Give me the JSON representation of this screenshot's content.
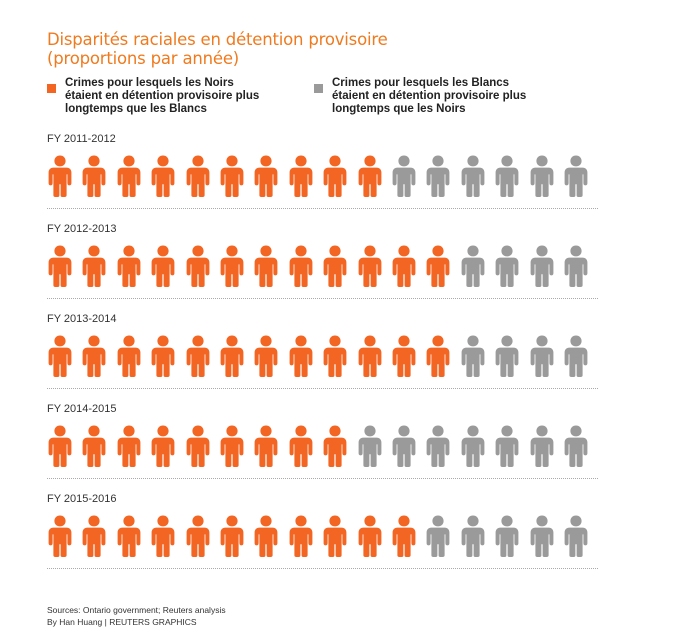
{
  "title": {
    "line1": "Disparités raciales en détention provisoire",
    "line2": "(proportions par année)"
  },
  "legend": [
    {
      "label": "Crimes pour lesquels les Noirs étaient en détention provisoire plus longtemps que les Blancs",
      "color": "#f26522"
    },
    {
      "label": "Crimes pour lesquels les Blancs étaient en détention provisoire plus longtemps que les Noirs",
      "color": "#9a9a9a"
    }
  ],
  "chart_data": {
    "type": "pictogram",
    "total_icons_per_row": 16,
    "colors": {
      "black_longer": "#f26522",
      "white_longer": "#9a9a9a"
    },
    "series": [
      {
        "name": "Crimes pour lesquels les Noirs étaient en détention provisoire plus longtemps que les Blancs",
        "values": [
          10,
          12,
          12,
          9,
          11
        ]
      },
      {
        "name": "Crimes pour lesquels les Blancs étaient en détention provisoire plus longtemps que les Noirs",
        "values": [
          6,
          4,
          4,
          7,
          5
        ]
      }
    ],
    "rows": [
      {
        "label": "FY 2011-2012",
        "black_longer": 10,
        "white_longer": 6
      },
      {
        "label": "FY 2012-2013",
        "black_longer": 12,
        "white_longer": 4
      },
      {
        "label": "FY 2013-2014",
        "black_longer": 12,
        "white_longer": 4
      },
      {
        "label": "FY 2014-2015",
        "black_longer": 9,
        "white_longer": 7
      },
      {
        "label": "FY 2015-2016",
        "black_longer": 11,
        "white_longer": 5
      }
    ]
  },
  "source": {
    "line1": "Sources: Ontario government; Reuters analysis",
    "line2": "By Han Huang | REUTERS GRAPHICS"
  }
}
